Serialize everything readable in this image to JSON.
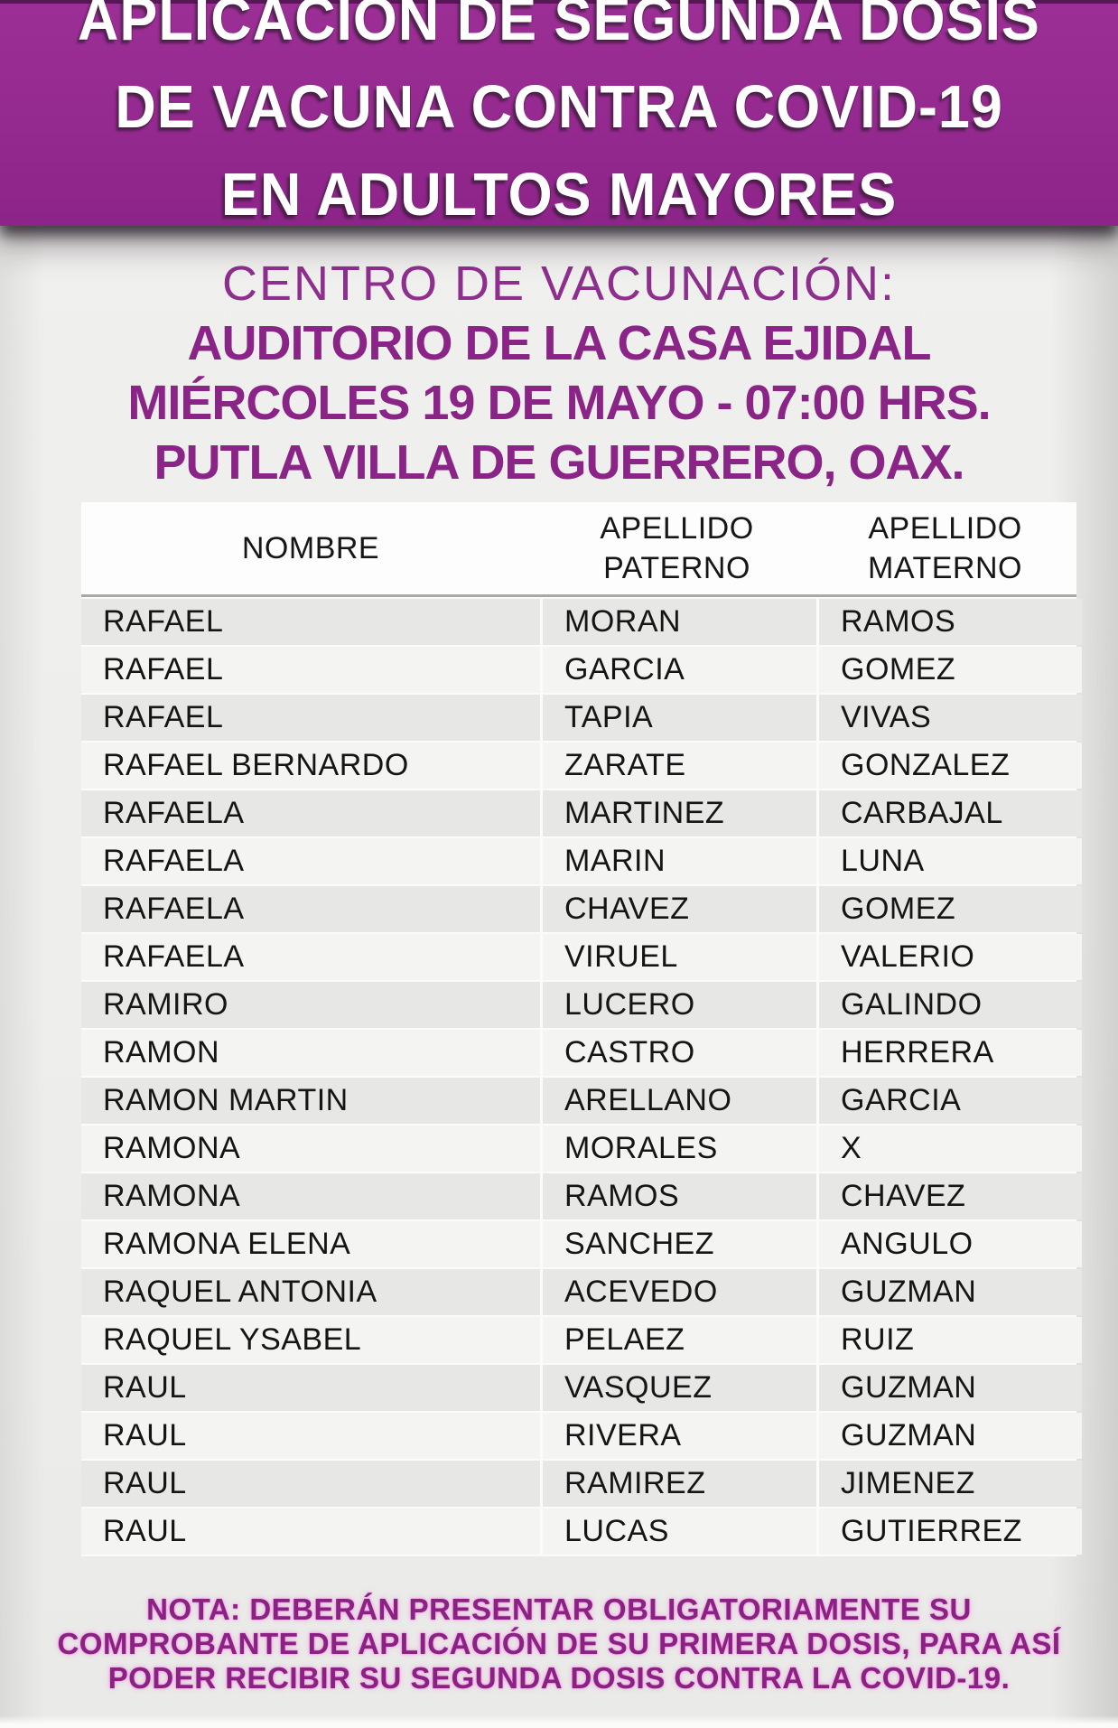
{
  "colors": {
    "banner_bg": "#94298f",
    "banner_text": "#ffffff",
    "venue_text": "#8a2587",
    "note_text": "#8b2183",
    "row_odd_bg": "#e7e7e5",
    "row_even_bg": "#f4f4f2",
    "header_bg": "#fdfdfd",
    "header_separator": "#a9a9a9"
  },
  "banner": {
    "lines": [
      "APLICACIÓN DE SEGUNDA DOSIS",
      "DE VACUNA CONTRA COVID-19",
      "EN ADULTOS MAYORES"
    ]
  },
  "venue": {
    "label": "CENTRO DE VACUNACIÓN:",
    "place": "AUDITORIO DE LA CASA EJIDAL",
    "datetime": "MIÉRCOLES 19 DE MAYO - 07:00 HRS.",
    "city": "PUTLA VILLA DE GUERRERO, OAX."
  },
  "table": {
    "headers": {
      "nombre": "NOMBRE",
      "paterno": "APELLIDO PATERNO",
      "materno": "APELLIDO MATERNO"
    },
    "rows": [
      {
        "nombre": "RAFAEL",
        "paterno": "MORAN",
        "materno": "RAMOS"
      },
      {
        "nombre": "RAFAEL",
        "paterno": "GARCIA",
        "materno": "GOMEZ"
      },
      {
        "nombre": "RAFAEL",
        "paterno": "TAPIA",
        "materno": "VIVAS"
      },
      {
        "nombre": "RAFAEL BERNARDO",
        "paterno": "ZARATE",
        "materno": "GONZALEZ"
      },
      {
        "nombre": "RAFAELA",
        "paterno": "MARTINEZ",
        "materno": "CARBAJAL"
      },
      {
        "nombre": "RAFAELA",
        "paterno": "MARIN",
        "materno": "LUNA"
      },
      {
        "nombre": "RAFAELA",
        "paterno": "CHAVEZ",
        "materno": "GOMEZ"
      },
      {
        "nombre": "RAFAELA",
        "paterno": "VIRUEL",
        "materno": "VALERIO"
      },
      {
        "nombre": "RAMIRO",
        "paterno": "LUCERO",
        "materno": "GALINDO"
      },
      {
        "nombre": "RAMON",
        "paterno": "CASTRO",
        "materno": "HERRERA"
      },
      {
        "nombre": "RAMON MARTIN",
        "paterno": "ARELLANO",
        "materno": "GARCIA"
      },
      {
        "nombre": "RAMONA",
        "paterno": "MORALES",
        "materno": "X"
      },
      {
        "nombre": "RAMONA",
        "paterno": "RAMOS",
        "materno": "CHAVEZ"
      },
      {
        "nombre": "RAMONA ELENA",
        "paterno": "SANCHEZ",
        "materno": "ANGULO"
      },
      {
        "nombre": "RAQUEL ANTONIA",
        "paterno": "ACEVEDO",
        "materno": "GUZMAN"
      },
      {
        "nombre": "RAQUEL YSABEL",
        "paterno": "PELAEZ",
        "materno": "RUIZ"
      },
      {
        "nombre": "RAUL",
        "paterno": "VASQUEZ",
        "materno": "GUZMAN"
      },
      {
        "nombre": "RAUL",
        "paterno": "RIVERA",
        "materno": "GUZMAN"
      },
      {
        "nombre": "RAUL",
        "paterno": "RAMIREZ",
        "materno": "JIMENEZ"
      },
      {
        "nombre": "RAUL",
        "paterno": "LUCAS",
        "materno": "GUTIERREZ"
      }
    ]
  },
  "note": {
    "lines": [
      "NOTA: DEBERÁN PRESENTAR OBLIGATORIAMENTE SU",
      "COMPROBANTE DE APLICACIÓN DE SU PRIMERA DOSIS, PARA ASÍ",
      "PODER RECIBIR SU SEGUNDA DOSIS CONTRA LA COVID-19."
    ]
  }
}
